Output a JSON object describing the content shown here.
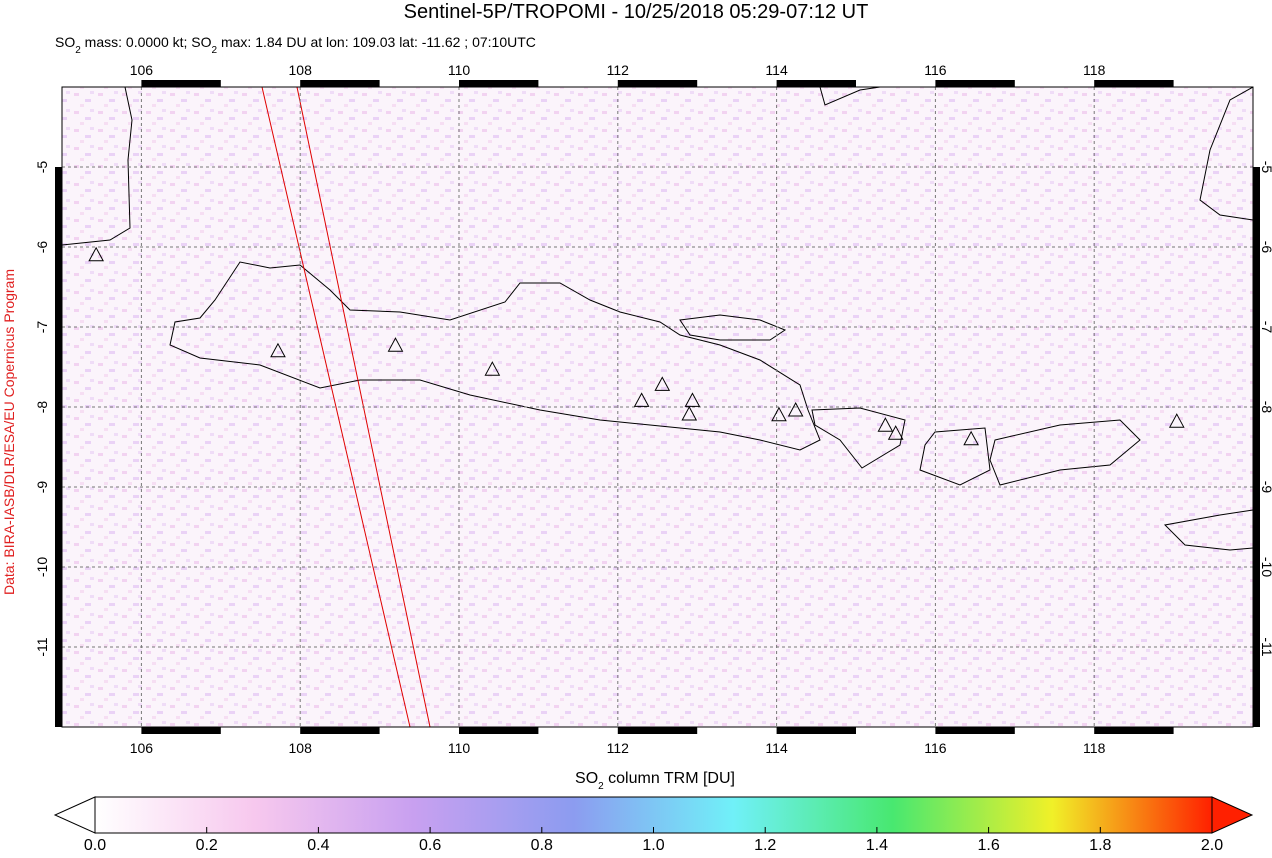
{
  "title": "Sentinel-5P/TROPOMI - 10/25/2018 05:29-07:12 UT",
  "subtitle": [
    "SO",
    "2",
    " mass: 0.0000 kt; SO",
    "2",
    " max: 1.84 DU at lon: 109.03 lat: -11.62 ; 07:10UTC"
  ],
  "credit": "Data: BIRA-IASB/DLR/ESA/EU Copernicus Program",
  "map": {
    "xlim": [
      105,
      120
    ],
    "ylim": [
      -12,
      -4
    ],
    "xticks": [
      106,
      108,
      110,
      112,
      114,
      116,
      118
    ],
    "yticks": [
      -5,
      -6,
      -7,
      -8,
      -9,
      -10,
      -11
    ],
    "volcanoes": [
      [
        105.43,
        -6.11
      ],
      [
        107.72,
        -7.31
      ],
      [
        109.2,
        -7.24
      ],
      [
        110.42,
        -7.54
      ],
      [
        112.3,
        -7.93
      ],
      [
        112.56,
        -7.73
      ],
      [
        112.94,
        -7.93
      ],
      [
        112.9,
        -8.1
      ],
      [
        114.03,
        -8.11
      ],
      [
        114.24,
        -8.05
      ],
      [
        115.37,
        -8.24
      ],
      [
        115.5,
        -8.34
      ],
      [
        116.45,
        -8.41
      ],
      [
        119.04,
        -8.19
      ]
    ]
  },
  "colorbar": {
    "label": [
      "SO",
      "2",
      " column TRM [DU]"
    ],
    "lim": [
      0,
      2
    ],
    "ticks": [
      {
        "value": 0,
        "label": "0.0"
      },
      {
        "value": 0.2,
        "label": "0.2"
      },
      {
        "value": 0.4,
        "label": "0.4"
      },
      {
        "value": 0.6,
        "label": "0.6"
      },
      {
        "value": 0.8,
        "label": "0.8"
      },
      {
        "value": 1,
        "label": "1.0"
      },
      {
        "value": 1.2,
        "label": "1.2"
      },
      {
        "value": 1.4,
        "label": "1.4"
      },
      {
        "value": 1.6,
        "label": "1.6"
      },
      {
        "value": 1.8,
        "label": "1.8"
      },
      {
        "value": 2,
        "label": "2.0"
      }
    ],
    "colors": [
      "#ffffff",
      "#f7c8ee",
      "#c8a0f0",
      "#8c9cf0",
      "#70f0f8",
      "#48e870",
      "#f0f028",
      "#ff2000"
    ]
  }
}
